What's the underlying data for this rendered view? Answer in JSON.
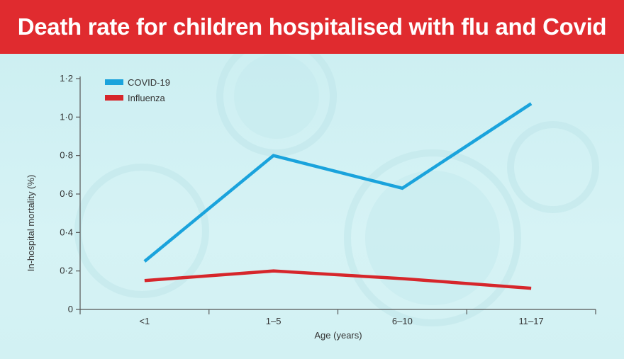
{
  "header": {
    "title": "Death rate for children hospitalised with flu and Covid"
  },
  "chart_data": {
    "type": "line",
    "title": "Death rate for children hospitalised with flu and Covid",
    "xlabel": "Age (years)",
    "ylabel": "In-hospital mortality (%)",
    "categories": [
      "<1",
      "1–5",
      "6–10",
      "11–17"
    ],
    "ylim": [
      0,
      1.2
    ],
    "yticks": [
      "0",
      "0·2",
      "0·4",
      "0·6",
      "0·8",
      "1·0",
      "1·2"
    ],
    "grid": false,
    "legend_position": "top-left",
    "series": [
      {
        "name": "COVID-19",
        "color": "#1aa3dc",
        "values": [
          0.25,
          0.8,
          0.63,
          1.07
        ]
      },
      {
        "name": "Influenza",
        "color": "#d6262b",
        "values": [
          0.15,
          0.2,
          0.16,
          0.11
        ]
      }
    ]
  }
}
